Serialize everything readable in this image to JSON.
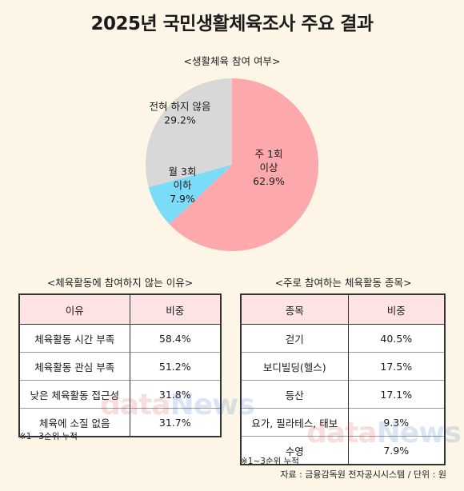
{
  "title": "2025년 국민생활체육조사 주요 결과",
  "chart_data": {
    "type": "pie",
    "title": "<생활체육 참여 여부>",
    "slices": [
      {
        "label_lines": [
          "주 1회",
          "이상"
        ],
        "value": 62.9,
        "value_label": "62.9%",
        "color": "#fda8ad"
      },
      {
        "label_lines": [
          "월 3회",
          "이하"
        ],
        "value": 7.9,
        "value_label": "7.9%",
        "color": "#7bdcfa"
      },
      {
        "label_lines": [
          "전혀 하지 않음"
        ],
        "value": 29.2,
        "value_label": "29.2%",
        "color": "#d8d8d8"
      }
    ]
  },
  "left_section": {
    "title": "<체육활동에 참여하지 않는 이유>",
    "headers": [
      "이유",
      "비중"
    ],
    "rows": [
      [
        "체육활동 시간 부족",
        "58.4%"
      ],
      [
        "체육활동 관심 부족",
        "51.2%"
      ],
      [
        "낮은 체육활동 접근성",
        "31.8%"
      ],
      [
        "체육에 소질 없음",
        "31.7%"
      ]
    ],
    "note": "※1~3순위 누적"
  },
  "right_section": {
    "title": "<주로 참여하는 체육활동 종목>",
    "headers": [
      "종목",
      "비중"
    ],
    "rows": [
      [
        "걷기",
        "40.5%"
      ],
      [
        "보디빌딩(헬스)",
        "17.5%"
      ],
      [
        "등산",
        "17.1%"
      ],
      [
        "요가, 필라테스, 태보",
        "9.3%"
      ],
      [
        "수영",
        "7.9%"
      ]
    ],
    "note": "※1~3순위 누적"
  },
  "source": "자료 : 금융감독원 전자공시시스템 / 단위 : 원",
  "watermark": {
    "part1": "data",
    "part2": "News"
  }
}
